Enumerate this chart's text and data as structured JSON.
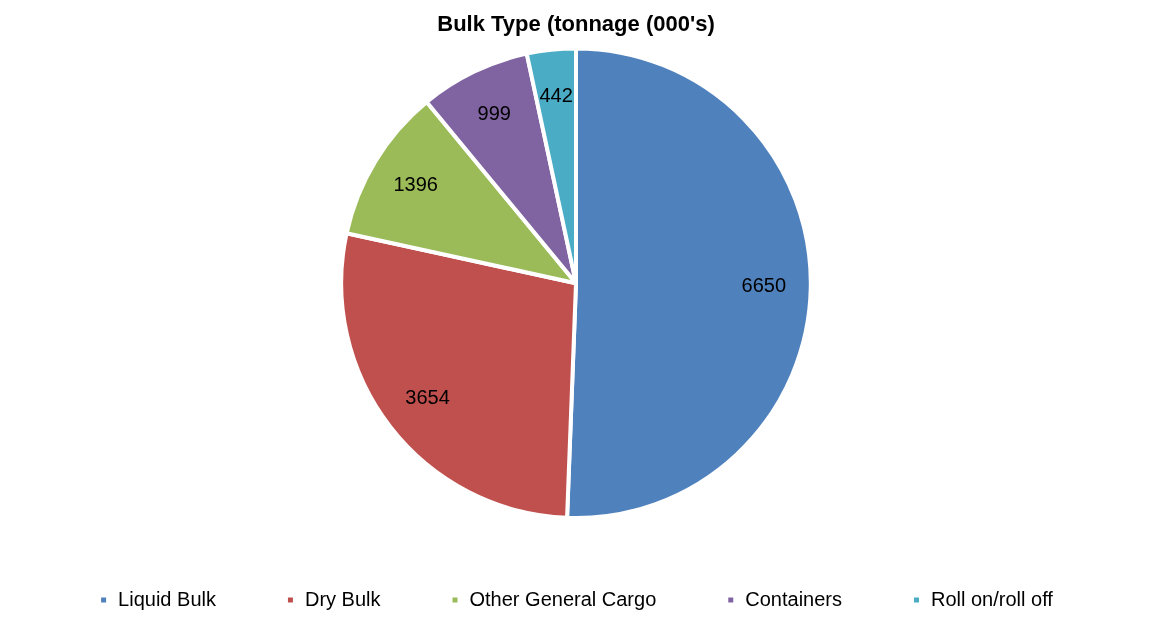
{
  "chart_data": {
    "type": "pie",
    "title": "Bulk Type (tonnage (000's)",
    "categories": [
      "Liquid Bulk",
      "Dry Bulk",
      "Other General Cargo",
      "Containers",
      "Roll on/roll off"
    ],
    "values": [
      6650,
      3654,
      1396,
      999,
      442
    ],
    "colors": [
      "#4f81bd",
      "#c0504d",
      "#9bbb59",
      "#8064a2",
      "#4bacc6"
    ],
    "data_labels": true,
    "legend": "bottom"
  }
}
